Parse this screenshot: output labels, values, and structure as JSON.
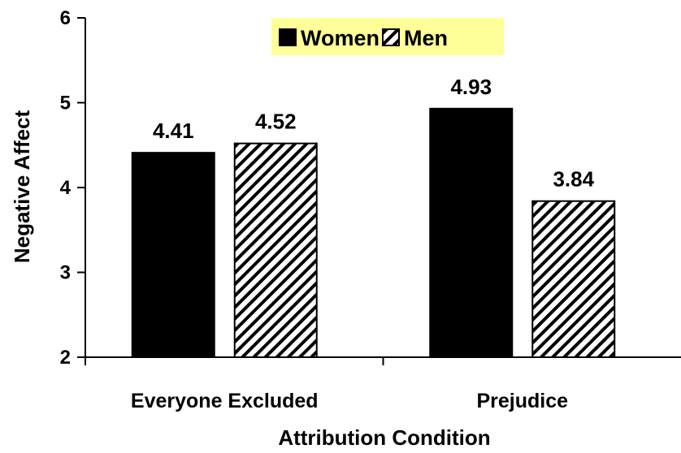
{
  "chart_data": {
    "type": "bar",
    "categories": [
      "Everyone Excluded",
      "Prejudice"
    ],
    "series": [
      {
        "name": "Women",
        "values": [
          4.41,
          4.93
        ],
        "fill": "solid-black"
      },
      {
        "name": "Men",
        "values": [
          4.52,
          3.84
        ],
        "fill": "diagonal-hatch"
      }
    ],
    "data_labels": [
      [
        "4.41",
        "4.52"
      ],
      [
        "4.93",
        "3.84"
      ]
    ],
    "xlabel": "Attribution Condition",
    "ylabel": "Negative Affect",
    "ylim": [
      2,
      6
    ],
    "yticks": [
      "2",
      "3",
      "4",
      "5",
      "6"
    ],
    "grid": false,
    "legend_position": "top-center",
    "legend_background": "#ffff99"
  }
}
